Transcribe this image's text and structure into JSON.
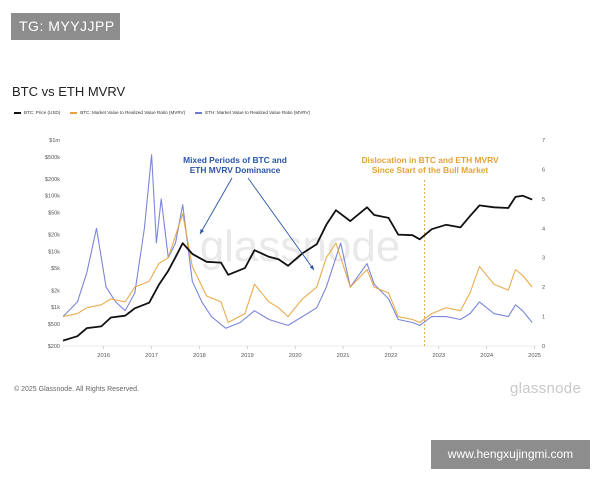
{
  "header": {
    "tag_text": "TG: MYYJJPP"
  },
  "footer": {
    "copyright": "© 2025 Glassnode. All Rights Reserved.",
    "logo_text": "glassnode",
    "site_url": "www.hengxujingmi.com"
  },
  "colors": {
    "btc": "#111111",
    "btc_mvrv": "#e8a33c",
    "eth_mvrv": "#6d79d6",
    "annot_blue": "#2a55a8",
    "annot_orange": "#e3a33a"
  },
  "chart_data": {
    "type": "line",
    "title": "BTC vs ETH MVRV",
    "watermark": "glassnode",
    "legend": [
      "BTC: Price (USD)",
      "BTC: Market Value to Realized Value Ratio (MVRV)",
      "ETH: Market Value to Realized Value Ratio (MVRV)"
    ],
    "x_ticks": [
      "2016",
      "2017",
      "2018",
      "2019",
      "2020",
      "2021",
      "2022",
      "2023",
      "2024",
      "2025"
    ],
    "x_range": [
      2015.5,
      2025.4
    ],
    "y_left": {
      "scale": "log",
      "range": [
        200,
        1000000
      ],
      "ticks": [
        "$200",
        "$500",
        "$1k",
        "$2k",
        "$5k",
        "$10k",
        "$20k",
        "$50k",
        "$100k",
        "$200k",
        "$500k",
        "$1m"
      ],
      "tick_values": [
        200,
        500,
        1000,
        2000,
        5000,
        10000,
        20000,
        50000,
        100000,
        200000,
        500000,
        1000000
      ]
    },
    "y_right": {
      "scale": "linear",
      "range": [
        0,
        7
      ],
      "ticks": [
        "0",
        "1",
        "2",
        "3",
        "4",
        "5",
        "6",
        "7"
      ],
      "tick_values": [
        0,
        1,
        2,
        3,
        4,
        5,
        6,
        7
      ]
    },
    "series": [
      {
        "name": "BTC: Price (USD)",
        "axis": "left",
        "x": [
          2015.5,
          2015.8,
          2016.0,
          2016.3,
          2016.5,
          2016.8,
          2017.0,
          2017.3,
          2017.5,
          2017.7,
          2017.9,
          2018.0,
          2018.2,
          2018.5,
          2018.8,
          2018.95,
          2019.3,
          2019.5,
          2019.8,
          2020.0,
          2020.2,
          2020.5,
          2020.8,
          2021.0,
          2021.2,
          2021.5,
          2021.85,
          2022.0,
          2022.3,
          2022.5,
          2022.8,
          2022.95,
          2023.2,
          2023.5,
          2023.8,
          2024.0,
          2024.2,
          2024.5,
          2024.8,
          2024.95,
          2025.1,
          2025.3
        ],
        "values": [
          250,
          300,
          420,
          450,
          650,
          700,
          950,
          1200,
          2500,
          4500,
          9500,
          14000,
          9000,
          6500,
          6300,
          3800,
          5000,
          10500,
          8000,
          7200,
          5500,
          9200,
          13500,
          30000,
          55000,
          35000,
          62000,
          45000,
          40000,
          20000,
          19500,
          16500,
          25000,
          30000,
          27000,
          43000,
          67000,
          62000,
          60000,
          95000,
          100000,
          85000
        ]
      },
      {
        "name": "BTC: MVRV",
        "axis": "right",
        "x": [
          2015.5,
          2015.8,
          2016.0,
          2016.3,
          2016.5,
          2016.8,
          2017.0,
          2017.3,
          2017.5,
          2017.7,
          2017.9,
          2018.0,
          2018.2,
          2018.5,
          2018.8,
          2018.95,
          2019.3,
          2019.5,
          2019.8,
          2020.0,
          2020.2,
          2020.5,
          2020.8,
          2021.0,
          2021.2,
          2021.5,
          2021.85,
          2022.0,
          2022.3,
          2022.5,
          2022.8,
          2022.95,
          2023.2,
          2023.5,
          2023.8,
          2024.0,
          2024.2,
          2024.5,
          2024.8,
          2024.95,
          2025.1,
          2025.3
        ],
        "values": [
          1.0,
          1.1,
          1.3,
          1.4,
          1.6,
          1.5,
          2.0,
          2.2,
          2.8,
          3.0,
          4.0,
          4.5,
          2.7,
          1.7,
          1.5,
          0.8,
          1.1,
          2.1,
          1.5,
          1.3,
          1.0,
          1.6,
          2.0,
          3.0,
          3.5,
          2.0,
          2.6,
          2.0,
          1.8,
          1.0,
          0.9,
          0.8,
          1.1,
          1.3,
          1.2,
          1.8,
          2.7,
          2.1,
          1.9,
          2.6,
          2.4,
          2.0
        ]
      },
      {
        "name": "ETH: MVRV",
        "axis": "right",
        "x": [
          2015.5,
          2015.8,
          2016.0,
          2016.2,
          2016.4,
          2016.6,
          2016.8,
          2017.0,
          2017.2,
          2017.35,
          2017.45,
          2017.55,
          2017.7,
          2017.85,
          2018.0,
          2018.2,
          2018.4,
          2018.6,
          2018.9,
          2019.2,
          2019.5,
          2019.8,
          2020.0,
          2020.2,
          2020.5,
          2020.8,
          2021.0,
          2021.3,
          2021.5,
          2021.85,
          2022.0,
          2022.3,
          2022.5,
          2022.8,
          2022.95,
          2023.2,
          2023.5,
          2023.8,
          2024.0,
          2024.2,
          2024.5,
          2024.8,
          2024.95,
          2025.1,
          2025.3
        ],
        "values": [
          1.0,
          1.5,
          2.5,
          4.0,
          2.0,
          1.5,
          1.2,
          1.8,
          4.0,
          6.5,
          3.5,
          5.0,
          3.0,
          3.5,
          4.8,
          2.2,
          1.5,
          1.0,
          0.6,
          0.8,
          1.2,
          0.9,
          0.8,
          0.7,
          1.0,
          1.3,
          2.0,
          3.5,
          2.0,
          2.8,
          2.1,
          1.6,
          0.9,
          0.8,
          0.7,
          1.0,
          1.0,
          0.9,
          1.1,
          1.5,
          1.1,
          1.0,
          1.4,
          1.2,
          0.8
        ]
      }
    ],
    "annotations": [
      {
        "id": "mixed",
        "text": "Mixed Periods of BTC and ETH MVRV Dominance",
        "lines": [
          "Mixed Periods of BTC and",
          "ETH MVRV Dominance"
        ]
      },
      {
        "id": "dislocation",
        "text": "Dislocation in BTC and ETH MVRV Since Start of the Bull Market",
        "lines": [
          "Dislocation in BTC and ETH MVRV",
          "Since Start of the Bull Market"
        ]
      }
    ],
    "vertical_marker_x": 2023.05
  }
}
